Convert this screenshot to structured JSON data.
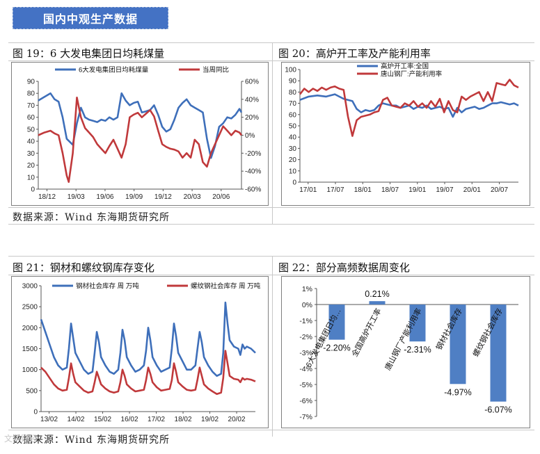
{
  "banner": {
    "title": "国内中观生产数据"
  },
  "source_text": "数据来源：Wind   东海期货研究所",
  "watermark": "文华财经",
  "panels": {
    "p19": {
      "title": "图 19：6 大发电集团日均耗煤量"
    },
    "p20": {
      "title": "图 20：高炉开工率及产能利用率"
    },
    "p21": {
      "title": "图 21：钢材和螺纹钢库存变化"
    },
    "p22": {
      "title": "图 22：部分高频数据周变化"
    }
  },
  "colors": {
    "blue": "#3e6fba",
    "red": "#c0393b",
    "bar": "#4f7fc4",
    "banner": "#4472c4"
  },
  "chart_data": [
    {
      "id": "p19",
      "type": "line",
      "x_ticks": [
        "18/12",
        "19/03",
        "19/06",
        "19/09",
        "19/12",
        "20/03",
        "20/06"
      ],
      "ylim_left": [
        0,
        90
      ],
      "yticks_left": [
        "0",
        "10",
        "20",
        "30",
        "40",
        "50",
        "60",
        "70",
        "80",
        "90"
      ],
      "ylim_right": [
        -60,
        60
      ],
      "yticks_right": [
        "-60%",
        "-40%",
        "-20%",
        "0%",
        "20%",
        "40%",
        "60%"
      ],
      "legend": "top",
      "series": [
        {
          "name": "6大发电集团日均耗煤量",
          "axis": "left",
          "color": "#3e6fba",
          "x": [
            0,
            3,
            6,
            8,
            10,
            12,
            14,
            17,
            19,
            21,
            23,
            25,
            27,
            29,
            31,
            33,
            35,
            37,
            39,
            41,
            43,
            45,
            47,
            49,
            51,
            53,
            55,
            57,
            59,
            61,
            63,
            65,
            67,
            69,
            71,
            73,
            75,
            77,
            79,
            81,
            83,
            85,
            87,
            89,
            91,
            93,
            95,
            97,
            99,
            100
          ],
          "y": [
            74,
            77,
            80,
            75,
            73,
            60,
            42,
            37,
            55,
            68,
            60,
            58,
            57,
            56,
            58,
            57,
            60,
            58,
            60,
            80,
            74,
            70,
            72,
            73,
            64,
            65,
            66,
            70,
            62,
            52,
            48,
            50,
            58,
            68,
            72,
            75,
            70,
            68,
            66,
            64,
            42,
            26,
            36,
            52,
            55,
            60,
            59,
            62,
            67,
            64
          ]
        },
        {
          "name": "当周同比",
          "axis": "right",
          "color": "#c0393b",
          "x": [
            0,
            3,
            6,
            8,
            10,
            12,
            14,
            15,
            17,
            19,
            21,
            23,
            25,
            27,
            29,
            31,
            33,
            35,
            37,
            39,
            41,
            43,
            45,
            47,
            49,
            51,
            53,
            55,
            57,
            59,
            61,
            63,
            65,
            67,
            69,
            71,
            73,
            75,
            77,
            79,
            81,
            83,
            85,
            87,
            89,
            91,
            93,
            95,
            97,
            99,
            100
          ],
          "y": [
            0,
            3,
            5,
            2,
            0,
            -20,
            -45,
            -52,
            -20,
            42,
            20,
            8,
            3,
            -2,
            -10,
            -15,
            -20,
            -12,
            -5,
            -15,
            -25,
            -10,
            20,
            23,
            25,
            20,
            24,
            28,
            21,
            5,
            -10,
            -13,
            -15,
            -16,
            -18,
            -25,
            -20,
            -25,
            -5,
            -10,
            -30,
            -35,
            -20,
            -10,
            0,
            10,
            5,
            0,
            5,
            3,
            0
          ]
        }
      ]
    },
    {
      "id": "p20",
      "type": "line",
      "x_ticks": [
        "17/01",
        "17/07",
        "18/01",
        "18/07",
        "19/01",
        "19/07",
        "20/01",
        "20/07"
      ],
      "ylim": [
        0,
        100
      ],
      "yticks": [
        "0",
        "10",
        "20",
        "30",
        "40",
        "50",
        "60",
        "70",
        "80",
        "90",
        "100"
      ],
      "legend": "top-left",
      "series": [
        {
          "name": "高炉开工率:全国",
          "color": "#3e6fba",
          "x": [
            0,
            4,
            8,
            12,
            16,
            20,
            24,
            26,
            28,
            30,
            32,
            34,
            36,
            38,
            40,
            42,
            44,
            46,
            48,
            50,
            52,
            54,
            56,
            58,
            60,
            62,
            64,
            66,
            68,
            70,
            72,
            74,
            76,
            78,
            80,
            82,
            84,
            86,
            88,
            90,
            92,
            94,
            96,
            98,
            100
          ],
          "y": [
            73,
            76,
            77,
            76,
            78,
            74,
            72,
            65,
            62,
            64,
            63,
            64,
            68,
            70,
            69,
            68,
            68,
            66,
            67,
            68,
            65,
            67,
            66,
            68,
            65,
            66,
            67,
            65,
            66,
            58,
            66,
            62,
            65,
            66,
            67,
            65,
            66,
            68,
            70,
            70,
            71,
            70,
            69,
            70,
            68
          ]
        },
        {
          "name": "唐山钢厂:产能利用率",
          "color": "#c0393b",
          "x": [
            0,
            2,
            4,
            6,
            8,
            10,
            12,
            14,
            16,
            18,
            20,
            22,
            24,
            26,
            28,
            30,
            32,
            34,
            36,
            38,
            40,
            42,
            44,
            46,
            48,
            50,
            52,
            54,
            56,
            58,
            60,
            62,
            64,
            66,
            68,
            70,
            72,
            74,
            76,
            78,
            80,
            82,
            84,
            86,
            88,
            90,
            92,
            94,
            96,
            98,
            100
          ],
          "y": [
            78,
            83,
            80,
            83,
            81,
            84,
            82,
            84,
            85,
            83,
            82,
            58,
            41,
            55,
            58,
            59,
            60,
            62,
            63,
            73,
            75,
            68,
            67,
            66,
            70,
            68,
            72,
            67,
            70,
            66,
            72,
            67,
            74,
            62,
            72,
            64,
            62,
            76,
            73,
            76,
            78,
            80,
            72,
            80,
            72,
            88,
            87,
            86,
            91,
            86,
            84
          ]
        }
      ]
    },
    {
      "id": "p21",
      "type": "line",
      "x_ticks": [
        "13/02",
        "14/02",
        "15/02",
        "16/02",
        "17/02",
        "18/02",
        "19/02",
        "20/02"
      ],
      "ylim": [
        0,
        3000
      ],
      "yticks": [
        "0",
        "500",
        "1000",
        "1500",
        "2000",
        "2500",
        "3000"
      ],
      "legend": "top",
      "series": [
        {
          "name": "钢材社会库存 周 万吨",
          "color": "#3e6fba",
          "x": [
            0,
            2,
            4,
            6,
            8,
            10,
            12,
            13,
            14,
            15,
            16,
            18,
            20,
            22,
            24,
            25,
            26,
            27,
            28,
            30,
            32,
            34,
            36,
            37,
            38,
            39,
            40,
            42,
            44,
            46,
            48,
            49,
            50,
            51,
            52,
            54,
            56,
            58,
            60,
            61,
            62,
            63,
            64,
            66,
            68,
            70,
            72,
            73,
            74,
            75,
            76,
            78,
            80,
            82,
            84,
            85,
            86,
            87,
            88,
            90,
            92,
            93,
            94,
            95,
            96,
            98,
            100
          ],
          "y": [
            2200,
            1900,
            1600,
            1300,
            1100,
            1000,
            1050,
            1500,
            2100,
            1750,
            1400,
            1200,
            1000,
            900,
            950,
            1400,
            1900,
            1650,
            1300,
            1100,
            950,
            900,
            1000,
            1400,
            1950,
            1700,
            1300,
            1100,
            950,
            1000,
            1100,
            1450,
            2000,
            1700,
            1300,
            1100,
            950,
            1000,
            1050,
            1500,
            2100,
            1800,
            1400,
            1200,
            1000,
            1000,
            1100,
            1500,
            1900,
            1650,
            1300,
            1100,
            950,
            850,
            900,
            1400,
            2600,
            2100,
            1700,
            1550,
            1500,
            1350,
            1600,
            1500,
            1550,
            1500,
            1400
          ]
        },
        {
          "name": "螺纹钢社会库存 周 万吨",
          "color": "#c0393b",
          "x": [
            0,
            2,
            4,
            6,
            8,
            10,
            12,
            13,
            14,
            15,
            16,
            18,
            20,
            22,
            24,
            25,
            26,
            27,
            28,
            30,
            32,
            34,
            36,
            37,
            38,
            39,
            40,
            42,
            44,
            46,
            48,
            49,
            50,
            51,
            52,
            54,
            56,
            58,
            60,
            61,
            62,
            63,
            64,
            66,
            68,
            70,
            72,
            73,
            74,
            75,
            76,
            78,
            80,
            82,
            84,
            85,
            86,
            87,
            88,
            90,
            92,
            93,
            94,
            95,
            96,
            98,
            100
          ],
          "y": [
            1050,
            950,
            800,
            650,
            550,
            500,
            520,
            800,
            1150,
            900,
            700,
            600,
            500,
            450,
            480,
            700,
            950,
            800,
            650,
            550,
            480,
            450,
            480,
            700,
            1000,
            850,
            650,
            550,
            480,
            500,
            520,
            750,
            1050,
            900,
            700,
            580,
            500,
            520,
            540,
            750,
            1150,
            950,
            700,
            600,
            520,
            500,
            520,
            760,
            1050,
            850,
            650,
            550,
            480,
            420,
            450,
            800,
            1450,
            1150,
            850,
            780,
            760,
            700,
            800,
            760,
            780,
            760,
            720
          ]
        }
      ]
    },
    {
      "id": "p22",
      "type": "bar",
      "ylim": [
        -7,
        1
      ],
      "yticks": [
        "1%",
        "0%",
        "-1%",
        "-2%",
        "-3%",
        "-4%",
        "-5%",
        "-6%",
        "-7%"
      ],
      "categories": [
        "6大发电集团日均…",
        "全国高炉开工率",
        "唐山钢厂产能利用率",
        "钢材社会库存",
        "螺纹钢社会库存"
      ],
      "values": [
        -2.2,
        0.21,
        -2.31,
        -4.97,
        -6.07
      ],
      "data_labels": [
        "-2.20%",
        "0.21%",
        "-2.31%",
        "-4.97%",
        "-6.07%"
      ]
    }
  ]
}
